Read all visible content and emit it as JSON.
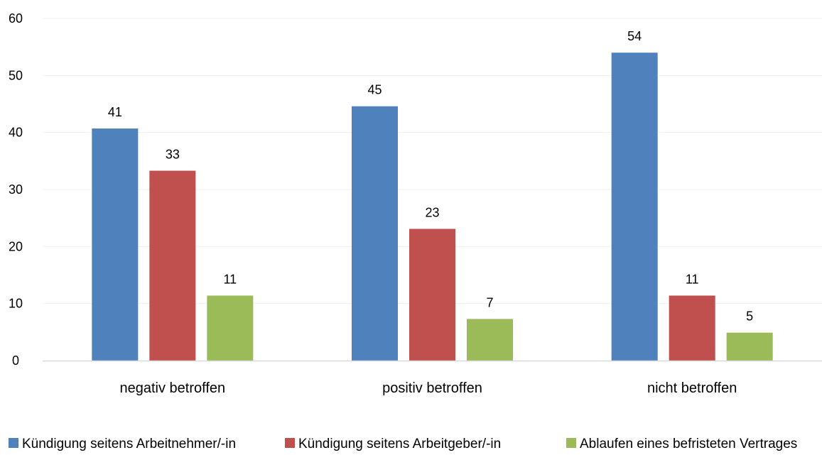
{
  "chart_data": {
    "type": "bar",
    "title": "",
    "xlabel": "",
    "ylabel": "",
    "ylim": [
      0,
      60
    ],
    "yticks": [
      0,
      10,
      20,
      30,
      40,
      50,
      60
    ],
    "grid": true,
    "legend_position": "bottom",
    "categories": [
      "negativ betroffen",
      "positiv betroffen",
      "nicht betroffen"
    ],
    "series": [
      {
        "name": "Kündigung seitens Arbeitnehmer/-in",
        "color": "#4F81BD",
        "values": [
          40.7,
          44.6,
          54
        ],
        "labels": [
          "41",
          "45",
          "54"
        ]
      },
      {
        "name": "Kündigung seitens Arbeitgeber/-in",
        "color": "#C0504D",
        "values": [
          33.3,
          23.1,
          11.4
        ],
        "labels": [
          "33",
          "23",
          "11"
        ]
      },
      {
        "name": "Ablaufen eines befristeten Vertrages",
        "color": "#9BBB59",
        "values": [
          11.4,
          7.3,
          4.9
        ],
        "labels": [
          "11",
          "7",
          "5"
        ]
      }
    ]
  }
}
